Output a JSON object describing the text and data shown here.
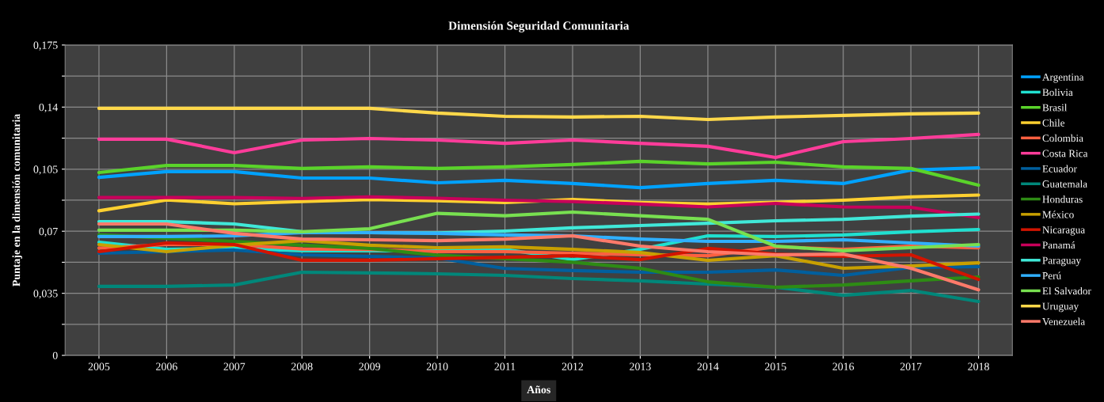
{
  "chart_data": {
    "type": "line",
    "title": "Dimensión Seguridad Comunitaria",
    "xlabel": "Años",
    "ylabel": "Puntaje en la dimensión comunitaria",
    "categories": [
      "2005",
      "2006",
      "2007",
      "2008",
      "2009",
      "2010",
      "2011",
      "2012",
      "2013",
      "2014",
      "2015",
      "2016",
      "2017",
      "2018"
    ],
    "ylim": [
      0,
      0.175
    ],
    "yticks": [
      {
        "value": 0,
        "label": "0"
      },
      {
        "value": 0.0175,
        "label": null
      },
      {
        "value": 0.035,
        "label": "0,035"
      },
      {
        "value": 0.0525,
        "label": null
      },
      {
        "value": 0.07,
        "label": "0,07"
      },
      {
        "value": 0.0875,
        "label": null
      },
      {
        "value": 0.105,
        "label": "0,105"
      },
      {
        "value": 0.1225,
        "label": null
      },
      {
        "value": 0.14,
        "label": "0,14"
      },
      {
        "value": 0.1575,
        "label": null
      },
      {
        "value": 0.175,
        "label": "0,175"
      }
    ],
    "grid": true,
    "legend": "right",
    "marker": "none",
    "line_style": "solid",
    "series": [
      {
        "name": "Argentina",
        "color": "#00a2ff",
        "values": [
          0.1004,
          0.1036,
          0.1036,
          0.1,
          0.1,
          0.0973,
          0.0987,
          0.0969,
          0.0946,
          0.0969,
          0.0987,
          0.0969,
          0.1045,
          0.1058
        ]
      },
      {
        "name": "Bolivia",
        "color": "#20e0d0",
        "values": [
          0.0638,
          0.0598,
          0.0603,
          0.059,
          0.059,
          0.059,
          0.0598,
          0.054,
          0.0598,
          0.0674,
          0.067,
          0.0679,
          0.0697,
          0.071
        ]
      },
      {
        "name": "Brasil",
        "color": "#5ad32a",
        "values": [
          0.1031,
          0.1071,
          0.1071,
          0.1054,
          0.1063,
          0.1054,
          0.1063,
          0.1076,
          0.1094,
          0.108,
          0.1089,
          0.1063,
          0.1054,
          0.096
        ]
      },
      {
        "name": "Chile",
        "color": "#ffd030",
        "values": [
          0.0815,
          0.0876,
          0.0855,
          0.0867,
          0.0879,
          0.0872,
          0.0862,
          0.0879,
          0.0862,
          0.0853,
          0.0863,
          0.0875,
          0.0893,
          0.0904
        ]
      },
      {
        "name": "Colombia",
        "color": "#ff6040",
        "values": [
          0.0605,
          0.0625,
          0.0625,
          0.06,
          0.0598,
          0.0585,
          0.0585,
          0.0576,
          0.0567,
          0.0562,
          0.0612,
          0.0598,
          0.0616,
          0.0607
        ]
      },
      {
        "name": "Costa Rica",
        "color": "#ff3c9a",
        "values": [
          0.1219,
          0.1219,
          0.1143,
          0.1214,
          0.1223,
          0.1214,
          0.1196,
          0.1214,
          0.1196,
          0.1179,
          0.1116,
          0.1205,
          0.1223,
          0.1246
        ]
      },
      {
        "name": "Ecuador",
        "color": "#005f9e",
        "values": [
          0.0576,
          0.0585,
          0.0594,
          0.0567,
          0.0558,
          0.0549,
          0.049,
          0.0478,
          0.0469,
          0.0469,
          0.0482,
          0.0451,
          0.0496,
          0.05
        ]
      },
      {
        "name": "Guatemala",
        "color": "#00877a",
        "values": [
          0.0389,
          0.0389,
          0.0397,
          0.0469,
          0.0465,
          0.046,
          0.0451,
          0.0433,
          0.042,
          0.0402,
          0.0384,
          0.0339,
          0.0366,
          0.0304
        ]
      },
      {
        "name": "Honduras",
        "color": "#2e8b14",
        "values": [
          0.068,
          0.066,
          0.0643,
          0.0621,
          0.0603,
          0.0565,
          0.0545,
          0.0525,
          0.0491,
          0.0415,
          0.0384,
          0.0397,
          0.042,
          0.0442
        ]
      },
      {
        "name": "México",
        "color": "#c8a000",
        "values": [
          0.0625,
          0.0585,
          0.0621,
          0.0647,
          0.0621,
          0.0607,
          0.0612,
          0.0598,
          0.058,
          0.0536,
          0.0562,
          0.0491,
          0.0504,
          0.0522
        ]
      },
      {
        "name": "Nicaragua",
        "color": "#d21400",
        "values": [
          0.0585,
          0.0634,
          0.0625,
          0.0536,
          0.0536,
          0.0545,
          0.0553,
          0.0562,
          0.054,
          0.0603,
          0.0571,
          0.0558,
          0.0567,
          0.0428
        ]
      },
      {
        "name": "Panamá",
        "color": "#c8005a",
        "values": [
          0.089,
          0.089,
          0.089,
          0.0885,
          0.0894,
          0.0886,
          0.0875,
          0.0867,
          0.0853,
          0.0837,
          0.0857,
          0.0837,
          0.0835,
          0.0777
        ]
      },
      {
        "name": "Paraguay",
        "color": "#40e8d8",
        "values": [
          0.0754,
          0.0754,
          0.0741,
          0.0697,
          0.0692,
          0.069,
          0.0701,
          0.0719,
          0.0732,
          0.0745,
          0.0759,
          0.0767,
          0.0785,
          0.0797
        ]
      },
      {
        "name": "Perú",
        "color": "#30b0ff",
        "values": [
          0.067,
          0.067,
          0.0674,
          0.0692,
          0.0692,
          0.0688,
          0.0679,
          0.0674,
          0.0656,
          0.0643,
          0.0643,
          0.0652,
          0.0634,
          0.0616
        ]
      },
      {
        "name": "El Salvador",
        "color": "#78e050",
        "values": [
          0.0706,
          0.0706,
          0.0706,
          0.0697,
          0.0714,
          0.0801,
          0.0787,
          0.0808,
          0.0787,
          0.0767,
          0.0616,
          0.059,
          0.0607,
          0.0625
        ]
      },
      {
        "name": "Uruguay",
        "color": "#ffd84a",
        "values": [
          0.1393,
          0.1393,
          0.1393,
          0.1393,
          0.1393,
          0.1366,
          0.1348,
          0.1344,
          0.1348,
          0.133,
          0.1344,
          0.1353,
          0.1362,
          0.1366
        ]
      },
      {
        "name": "Venezuela",
        "color": "#ff7a6a",
        "values": [
          0.0741,
          0.0741,
          0.0688,
          0.0656,
          0.0652,
          0.0647,
          0.0656,
          0.0674,
          0.0616,
          0.0585,
          0.0567,
          0.0571,
          0.0491,
          0.037
        ]
      }
    ]
  }
}
